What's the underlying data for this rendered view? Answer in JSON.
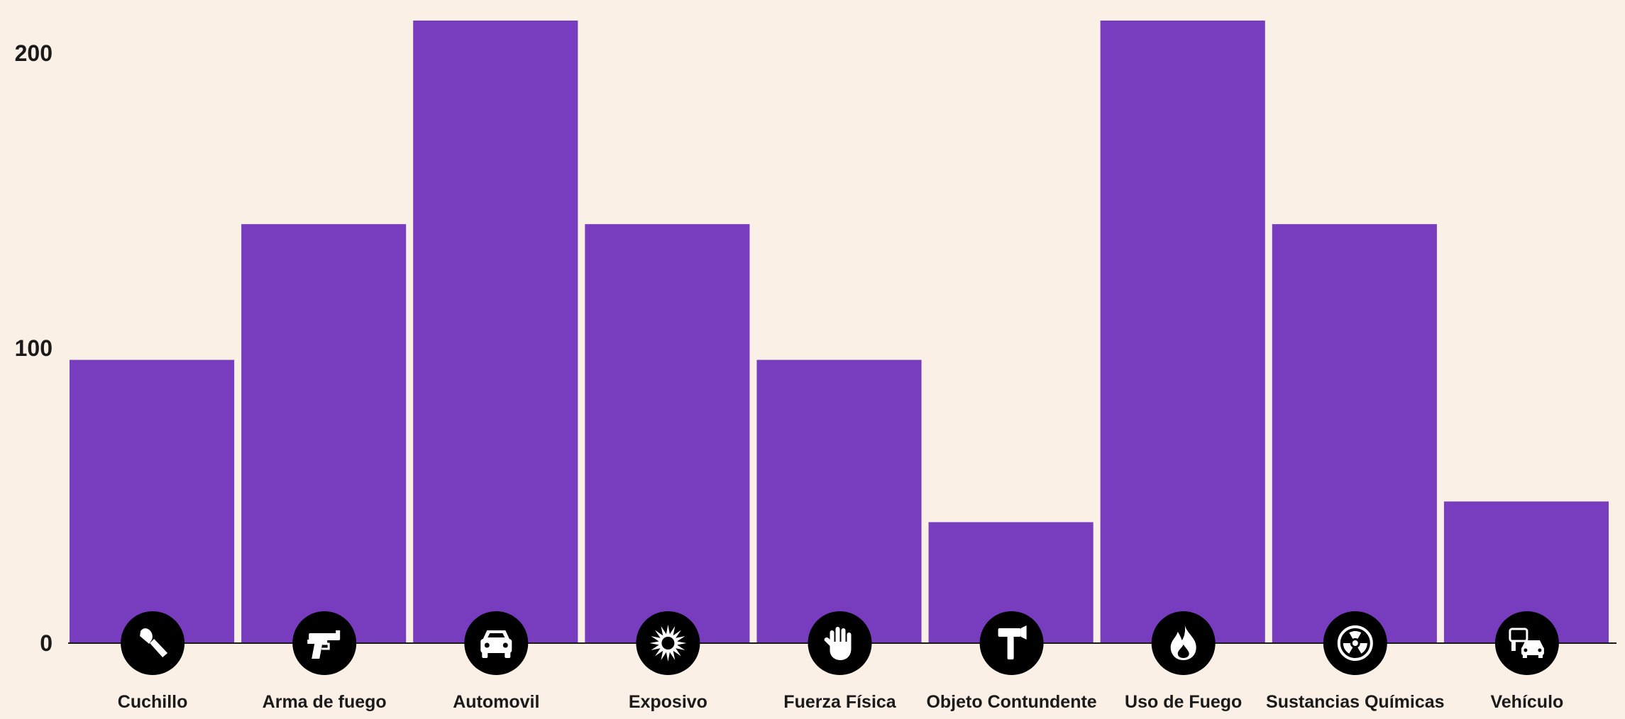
{
  "chart_data": {
    "type": "bar",
    "title": "",
    "xlabel": "",
    "ylabel": "",
    "ylim": [
      0,
      211
    ],
    "yticks": [
      0,
      100,
      200
    ],
    "grid": false,
    "bar_color": "#783cbe",
    "icon_circle_color": "#000000",
    "categories": [
      "Cuchillo",
      "Arma de fuego",
      "Automovil",
      "Exposivo",
      "Fuerza Física",
      "Objeto Contundente",
      "Uso de Fuego",
      "Sustancias Químicas",
      "Vehículo"
    ],
    "icons": [
      "knife-icon",
      "gun-icon",
      "car-icon",
      "explosion-icon",
      "hand-icon",
      "hammer-icon",
      "fire-icon",
      "radiation-icon",
      "vehicle-collision-icon"
    ],
    "values": [
      96,
      142,
      211,
      142,
      96,
      41,
      211,
      142,
      48
    ]
  }
}
